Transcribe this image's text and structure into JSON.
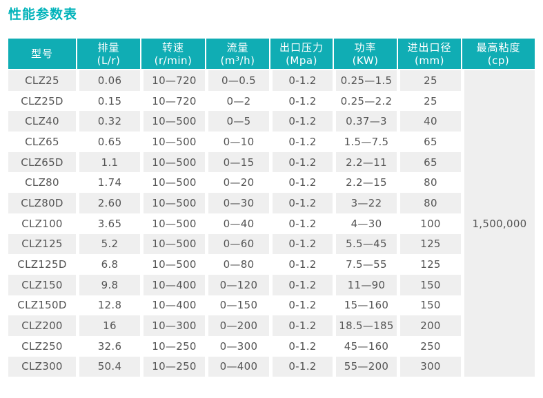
{
  "page": {
    "title": "性能参数表"
  },
  "colors": {
    "accent_teal": "#10adb4",
    "title_teal": "#00b3ba",
    "row_alt_gray": "#efefef",
    "body_text": "#545454",
    "header_text": "#ffffff"
  },
  "table": {
    "columns": [
      {
        "label": "型号",
        "unit": ""
      },
      {
        "label": "排量",
        "unit": "(L/r)"
      },
      {
        "label": "转速",
        "unit": "(r/min)"
      },
      {
        "label": "流量",
        "unit": "(m³/h)"
      },
      {
        "label": "出口压力",
        "unit": "(Mpa)"
      },
      {
        "label": "功率",
        "unit": "(KW)"
      },
      {
        "label": "进出口径",
        "unit": "(mm)"
      },
      {
        "label": "最高粘度",
        "unit": "(cp)"
      }
    ],
    "rows": [
      [
        "CLZ25",
        "0.06",
        "10—720",
        "0—0.5",
        "0-1.2",
        "0.25—1.5",
        "25"
      ],
      [
        "CLZ25D",
        "0.15",
        "10—720",
        "0—2",
        "0-1.2",
        "0.25—2.2",
        "25"
      ],
      [
        "CLZ40",
        "0.32",
        "10—500",
        "0—5",
        "0-1.2",
        "0.37—3",
        "40"
      ],
      [
        "CLZ65",
        "0.65",
        "10—500",
        "0—10",
        "0-1.2",
        "1.5—7.5",
        "65"
      ],
      [
        "CLZ65D",
        "1.1",
        "10—500",
        "0—15",
        "0-1.2",
        "2.2—11",
        "65"
      ],
      [
        "CLZ80",
        "1.74",
        "10—500",
        "0—20",
        "0-1.2",
        "2.2—15",
        "80"
      ],
      [
        "CLZ80D",
        "2.60",
        "10—500",
        "0—30",
        "0-1.2",
        "3—22",
        "80"
      ],
      [
        "CLZ100",
        "3.65",
        "10—500",
        "0—40",
        "0-1.2",
        "4—30",
        "100"
      ],
      [
        "CLZ125",
        "5.2",
        "10—500",
        "0—60",
        "0-1.2",
        "5.5—45",
        "125"
      ],
      [
        "CLZ125D",
        "6.8",
        "10—500",
        "0—80",
        "0-1.2",
        "7.5—55",
        "125"
      ],
      [
        "CLZ150",
        "9.8",
        "10—400",
        "0—120",
        "0-1.2",
        "11—90",
        "150"
      ],
      [
        "CLZ150D",
        "12.8",
        "10—400",
        "0—150",
        "0-1.2",
        "15—160",
        "150"
      ],
      [
        "CLZ200",
        "16",
        "10—300",
        "0—200",
        "0-1.2",
        "18.5—185",
        "200"
      ],
      [
        "CLZ250",
        "32.6",
        "10—250",
        "0—300",
        "0-1.2",
        "45—160",
        "250"
      ],
      [
        "CLZ300",
        "50.4",
        "10—250",
        "0—400",
        "0-1.2",
        "55—200",
        "300"
      ]
    ],
    "merged_max_viscosity": "1,500,000"
  }
}
